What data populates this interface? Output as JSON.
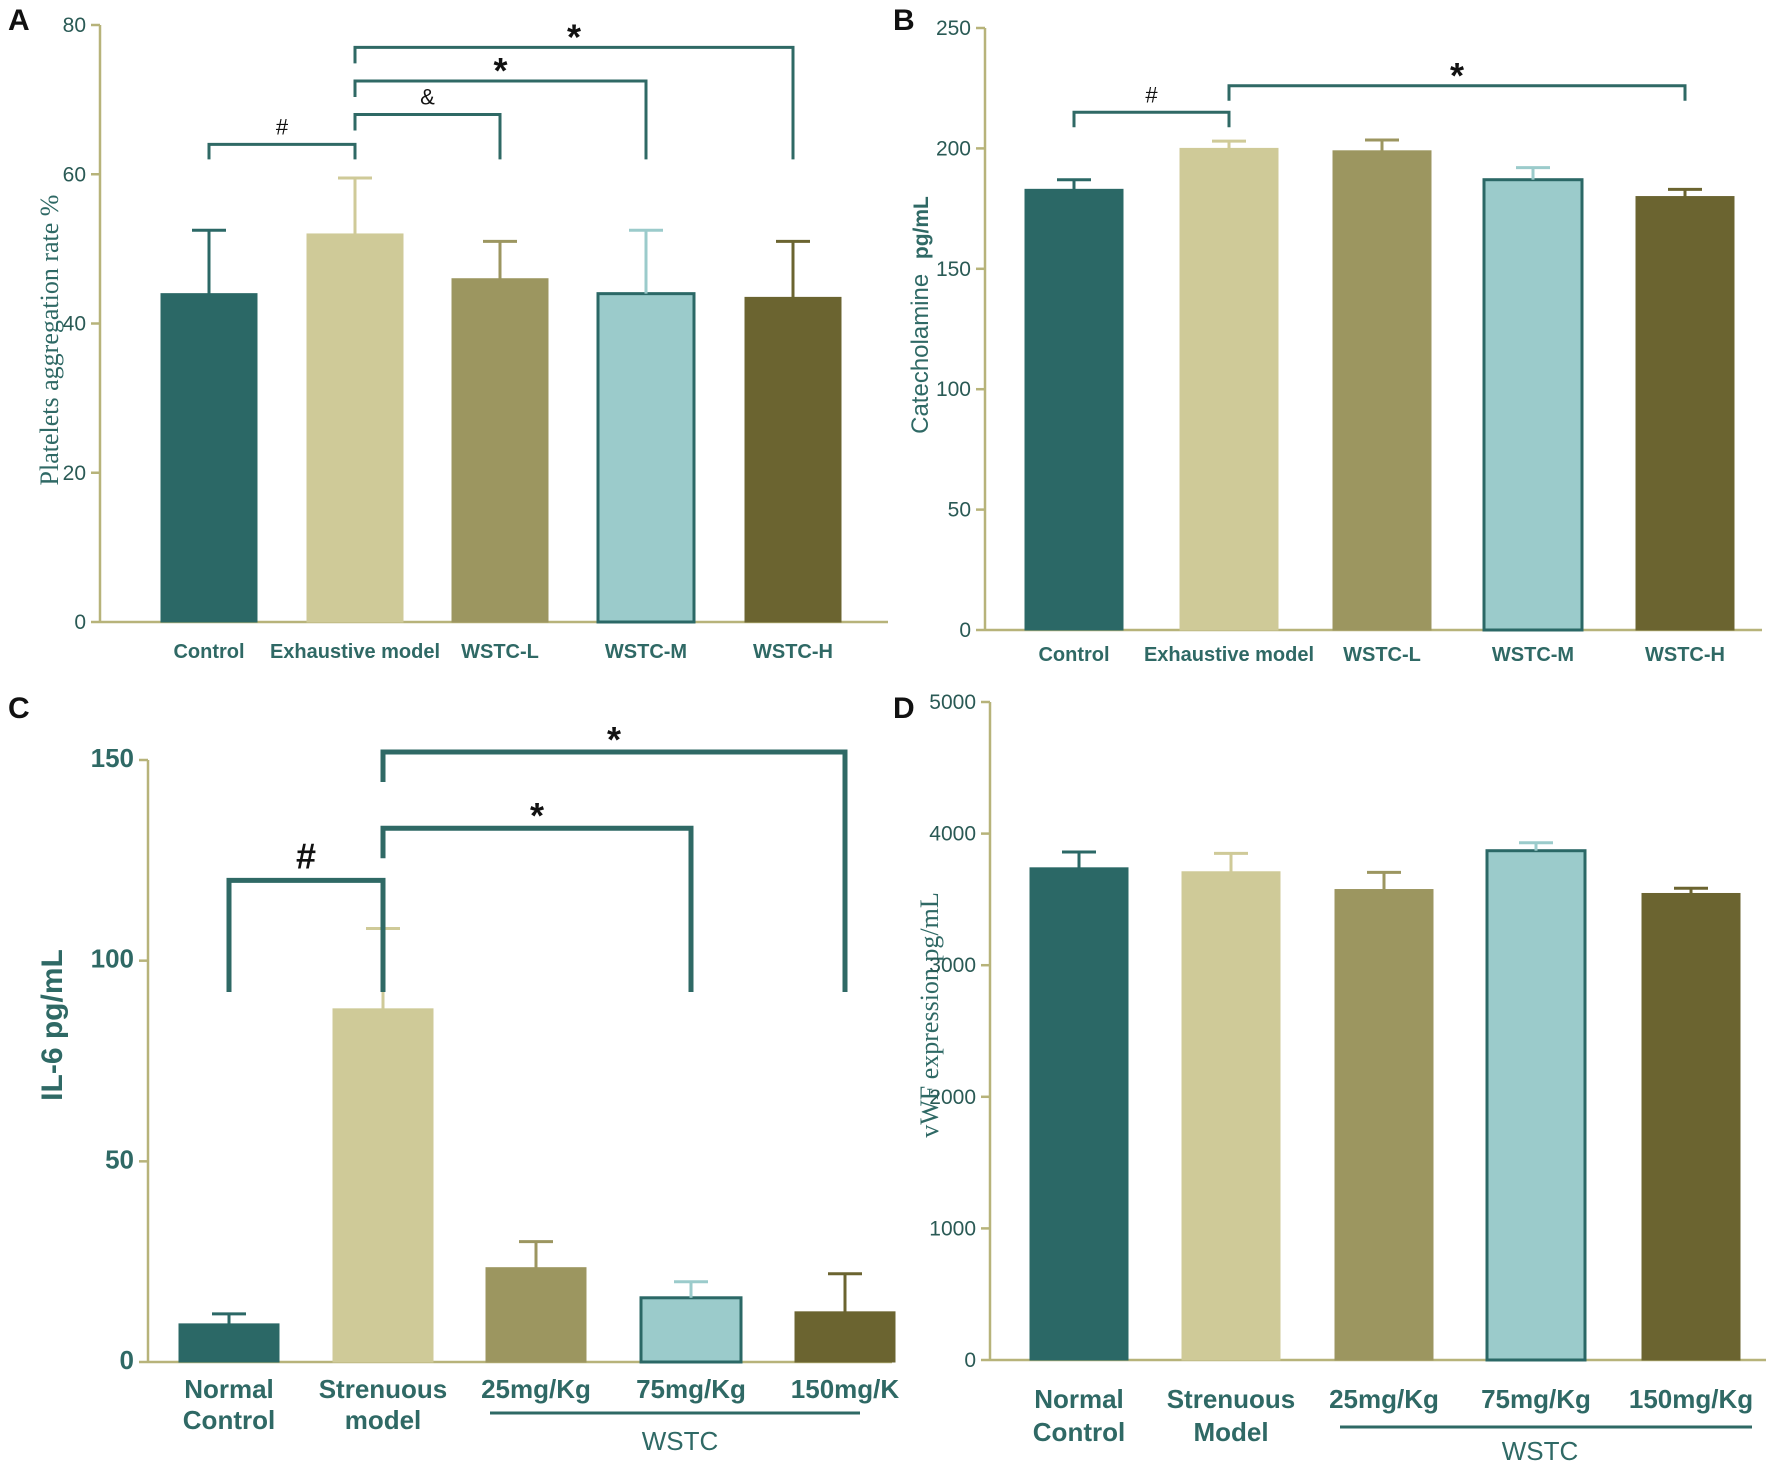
{
  "chart_data": [
    {
      "panel": "A",
      "type": "bar",
      "title": "",
      "xlabel": "",
      "ylabel": "Platelets aggregation rate %",
      "ylim": [
        0,
        80
      ],
      "yticks": [
        0,
        20,
        40,
        60,
        80
      ],
      "categories": [
        "Control",
        "Exhaustive model",
        "WSTC-L",
        "WSTC-M",
        "WSTC-H"
      ],
      "values": [
        44,
        52,
        46,
        44,
        43.5
      ],
      "errors": [
        8.5,
        7.5,
        5,
        8.5,
        7.5
      ],
      "colors": [
        "#2b6866",
        "#cfca98",
        "#9c9660",
        "#9bcbcb",
        "#6b6430"
      ],
      "significance": [
        {
          "from": 0,
          "to": 1,
          "label": "#",
          "level": 64
        },
        {
          "from": 1,
          "to": 2,
          "label": "&",
          "level": 68
        },
        {
          "from": 1,
          "to": 3,
          "label": "*",
          "level": 72.5
        },
        {
          "from": 1,
          "to": 4,
          "label": "*",
          "level": 77
        }
      ]
    },
    {
      "panel": "B",
      "type": "bar",
      "title": "",
      "xlabel": "",
      "ylabel_main": "Catecholamine",
      "ylabel_unit": "pg/mL",
      "ylim": [
        0,
        250
      ],
      "yticks": [
        0,
        50,
        100,
        150,
        200,
        250
      ],
      "categories": [
        "Control",
        "Exhaustive model",
        "WSTC-L",
        "WSTC-M",
        "WSTC-H"
      ],
      "values": [
        183,
        200,
        199,
        187,
        180
      ],
      "errors": [
        4,
        3,
        4.5,
        5,
        3
      ],
      "colors": [
        "#2b6866",
        "#cfca98",
        "#9c9660",
        "#9bcbcb",
        "#6b6430"
      ],
      "significance": [
        {
          "from": 0,
          "to": 1,
          "label": "#",
          "level": 215
        },
        {
          "from": 1,
          "to": 4,
          "label": "*",
          "level": 226
        }
      ]
    },
    {
      "panel": "C",
      "type": "bar",
      "title": "",
      "xlabel": "",
      "ylabel": "IL-6  pg/mL",
      "ylim": [
        0,
        150
      ],
      "yticks": [
        0,
        50,
        100,
        150
      ],
      "categories": [
        "Normal\nControl",
        "Strenuous\nmodel",
        "25mg/Kg",
        "75mg/Kg",
        "150mg/K"
      ],
      "group_label": "WSTC",
      "values": [
        9.5,
        88,
        23.5,
        16,
        12.5
      ],
      "errors": [
        2.5,
        20,
        6.5,
        4,
        9.5
      ],
      "colors": [
        "#2b6866",
        "#cfca98",
        "#9c9660",
        "#9bcbcb",
        "#6b6430"
      ],
      "significance": [
        {
          "from": 0,
          "to": 1,
          "label": "#",
          "level": 120
        },
        {
          "from": 1,
          "to": 3,
          "label": "*",
          "level": 133
        },
        {
          "from": 1,
          "to": 4,
          "label": "*",
          "level": 152
        }
      ]
    },
    {
      "panel": "D",
      "type": "bar",
      "title": "",
      "xlabel": "",
      "ylabel": "vWF expression pg/mL",
      "ylim": [
        0,
        5000
      ],
      "yticks": [
        0,
        1000,
        2000,
        3000,
        4000,
        5000
      ],
      "categories": [
        "Normal\nControl",
        "Strenuous\nModel",
        "25mg/Kg",
        "75mg/Kg",
        "150mg/Kg"
      ],
      "group_label": "WSTC",
      "values": [
        3740,
        3710,
        3575,
        3870,
        3545
      ],
      "errors": [
        120,
        140,
        130,
        60,
        40
      ],
      "colors": [
        "#2b6866",
        "#cfca98",
        "#9c9660",
        "#9bcbcb",
        "#6b6430"
      ],
      "significance": []
    }
  ]
}
